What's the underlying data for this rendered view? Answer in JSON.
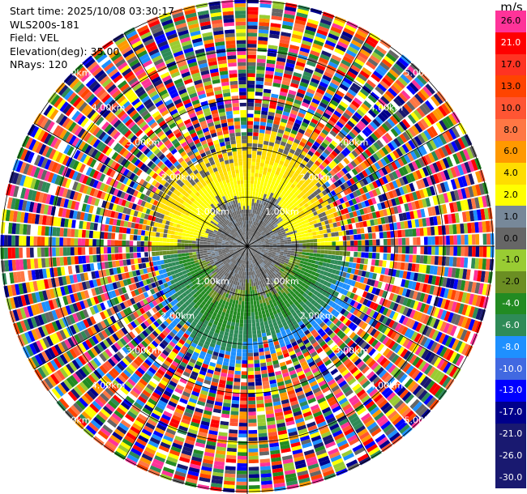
{
  "header": {
    "start_time": "Start time: 2025/10/08 03:30:17",
    "instrument": "WLS200s-181",
    "field": "Field: VEL",
    "elevation": "Elevation(deg): 35.00",
    "nrays": "NRays: 120"
  },
  "colorbar": {
    "unit": "m/s",
    "levels": [
      {
        "label": "26.0",
        "color": "#ff3399"
      },
      {
        "label": "21.0",
        "color": "#ff0000"
      },
      {
        "label": "17.0",
        "color": "#ff3322"
      },
      {
        "label": "13.0",
        "color": "#ff4400"
      },
      {
        "label": "10.0",
        "color": "#ff5533"
      },
      {
        "label": "8.0",
        "color": "#ff7744"
      },
      {
        "label": "6.0",
        "color": "#ff9900"
      },
      {
        "label": "4.0",
        "color": "#ffdd00"
      },
      {
        "label": "2.0",
        "color": "#ffff00"
      },
      {
        "label": "1.0",
        "color": "#778899"
      },
      {
        "label": "0.0",
        "color": "#666666"
      },
      {
        "label": "-1.0",
        "color": "#99cc33"
      },
      {
        "label": "-2.0",
        "color": "#6b8e23"
      },
      {
        "label": "-4.0",
        "color": "#228b22"
      },
      {
        "label": "-6.0",
        "color": "#2e8b57"
      },
      {
        "label": "-8.0",
        "color": "#1e90ff"
      },
      {
        "label": "-10.0",
        "color": "#4169e1"
      },
      {
        "label": "-13.0",
        "color": "#0000ff"
      },
      {
        "label": "-17.0",
        "color": "#00008b"
      },
      {
        "label": "-21.0",
        "color": "#191970"
      },
      {
        "label": "-26.0",
        "color": "#191970"
      },
      {
        "label": "-30.0",
        "color": "#191970"
      }
    ]
  },
  "chart_data": {
    "type": "heatmap",
    "projection": "polar (PPI)",
    "field": "VEL",
    "units": "m/s",
    "nrays": 120,
    "elevation_deg": 35.0,
    "range_rings_km": [
      1.0,
      2.0,
      3.0,
      4.0,
      5.0
    ],
    "range_labels": [
      "1.00km",
      "2.00km",
      "3.00km",
      "4.00km",
      "5.00km"
    ],
    "max_range_km": 5.0,
    "spokes_deg": [
      0,
      30,
      60,
      90,
      120,
      150,
      180,
      210,
      240,
      270,
      300,
      330
    ],
    "region_summary": [
      {
        "sector": "north (approx. 285°–75°)",
        "range_km": [
          0.9,
          2.2
        ],
        "velocity_ms": [
          2.0,
          6.0
        ]
      },
      {
        "sector": "center",
        "range_km": [
          0.0,
          0.9
        ],
        "velocity_ms": [
          0.0,
          1.0
        ]
      },
      {
        "sector": "south (approx. 105°–255°)",
        "range_km": [
          0.9,
          2.5
        ],
        "velocity_ms": [
          -8.0,
          -1.0
        ]
      },
      {
        "sector": "all azimuths",
        "range_km": [
          2.2,
          5.0
        ],
        "velocity_ms": "noise (mixed -30 to 26)"
      }
    ]
  }
}
